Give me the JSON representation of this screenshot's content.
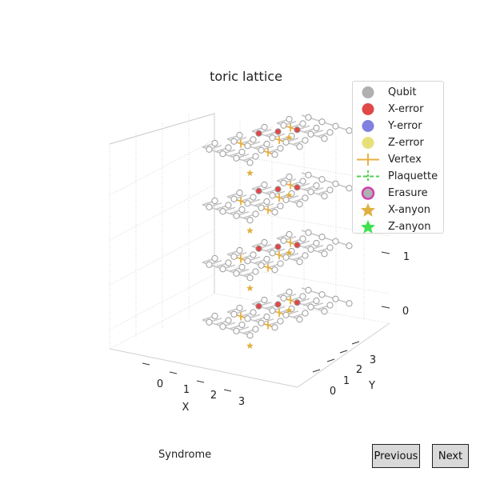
{
  "chart_data": {
    "type": "scatter",
    "projection": "3d",
    "title": "toric lattice",
    "xlabel": "X",
    "ylabel": "Y",
    "zlabel": "",
    "x_ticks": [
      "0",
      "1",
      "2",
      "3"
    ],
    "y_ticks": [
      "0",
      "1",
      "2",
      "3"
    ],
    "z_ticks": [
      "0",
      "1"
    ],
    "grid": true,
    "legend_position": "top-right",
    "layers": 4,
    "legend": [
      {
        "label": "Qubit",
        "marker": "circle",
        "color": "#b0b0b0"
      },
      {
        "label": "X-error",
        "marker": "circle",
        "color": "#e04848"
      },
      {
        "label": "Y-error",
        "marker": "circle",
        "color": "#8080e0"
      },
      {
        "label": "Z-error",
        "marker": "circle",
        "color": "#e6e07a"
      },
      {
        "label": "Vertex",
        "marker": "plus-line",
        "color": "#e8b040"
      },
      {
        "label": "Plaquette",
        "marker": "dashed-plus",
        "color": "#50d050"
      },
      {
        "label": "Erasure",
        "marker": "ring",
        "color": "#d040b0"
      },
      {
        "label": "X-anyon",
        "marker": "star",
        "color": "#e0b040"
      },
      {
        "label": "Z-anyon",
        "marker": "star",
        "color": "#40e050"
      }
    ]
  },
  "status_label": "Syndrome",
  "buttons": {
    "previous": "Previous",
    "next": "Next"
  }
}
